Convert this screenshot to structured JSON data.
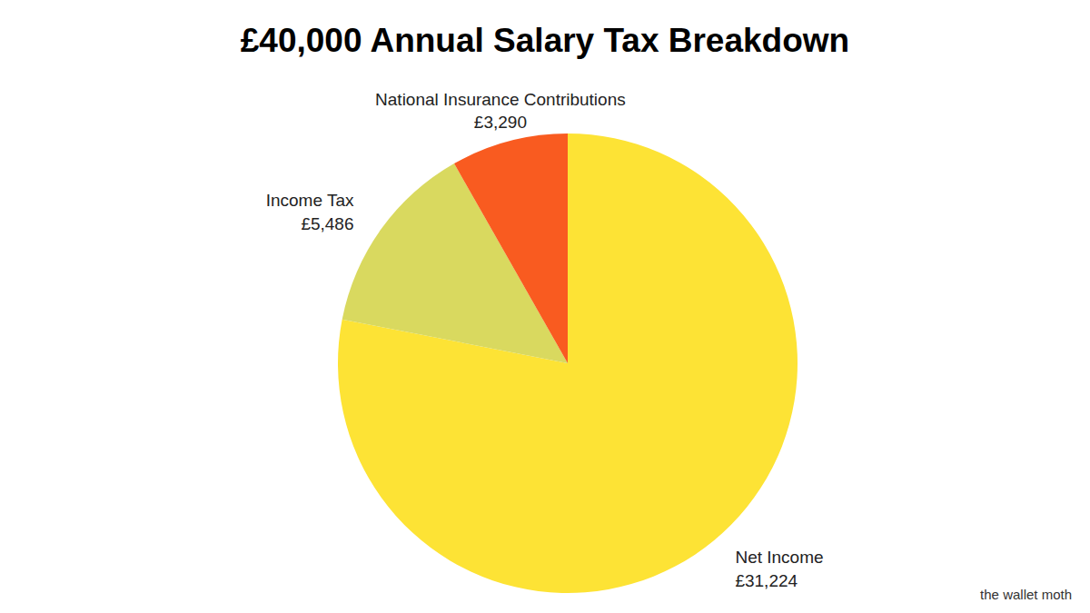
{
  "chart_data": {
    "type": "pie",
    "title": "£40,000 Annual Salary Tax Breakdown",
    "categories": [
      "Net Income",
      "Income Tax",
      "National Insurance Contributions"
    ],
    "values": [
      31224,
      5486,
      3290
    ],
    "value_labels": [
      "£31,224",
      "£5,486",
      "£3,290"
    ],
    "colors": [
      "#fde335",
      "#d9d95f",
      "#f95b20"
    ],
    "data_labels": true,
    "annotations": [
      "the wallet moth"
    ]
  }
}
